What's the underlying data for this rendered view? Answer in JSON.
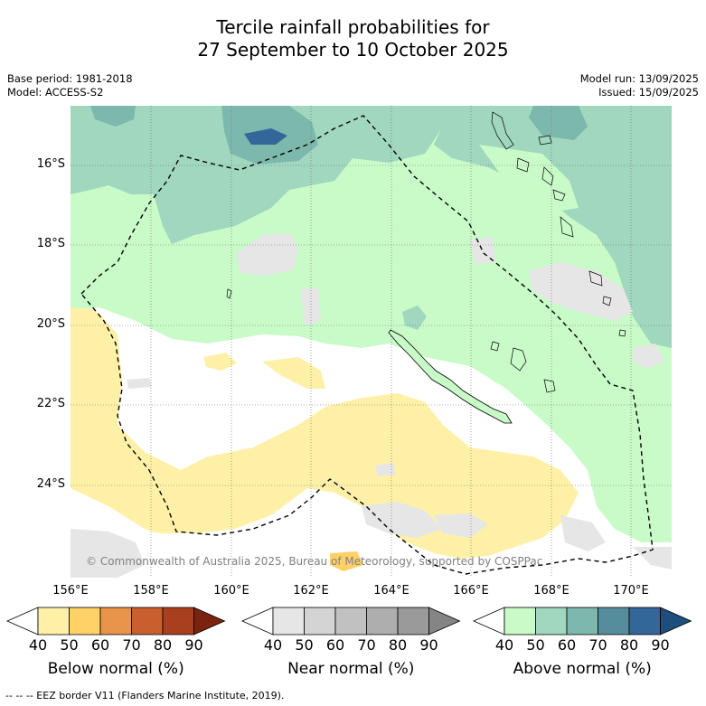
{
  "title_line1": "Tercile rainfall probabilities for",
  "title_line2": "27 September to 10 October 2025",
  "base_period": "Base period: 1981-2018",
  "model": "Model: ACCESS-S2",
  "model_run": "Model run: 13/09/2025",
  "issued": "Issued: 15/09/2025",
  "copyright": "© Commonwealth of Australia 2025, Bureau of Meteorology, supported by COSPPac",
  "lat_labels": [
    "16°S",
    "18°S",
    "20°S",
    "22°S",
    "24°S"
  ],
  "lon_labels": [
    "156°E",
    "158°E",
    "160°E",
    "162°E",
    "164°E",
    "166°E",
    "168°E",
    "170°E"
  ],
  "colorbars": [
    {
      "label": "Below normal (%)",
      "ticks": [
        "40",
        "50",
        "60",
        "70",
        "80",
        "90"
      ],
      "colors": [
        "#ffffff",
        "#fff0a8",
        "#ffd166",
        "#e8944a",
        "#c95f2f",
        "#a8401f",
        "#7a2410"
      ]
    },
    {
      "label": "Near normal (%)",
      "ticks": [
        "40",
        "50",
        "60",
        "70",
        "80",
        "90"
      ],
      "colors": [
        "#ffffff",
        "#e6e6e6",
        "#d4d4d4",
        "#c1c1c1",
        "#aeaeae",
        "#9a9a9a",
        "#858585"
      ]
    },
    {
      "label": "Above normal (%)",
      "ticks": [
        "40",
        "50",
        "60",
        "70",
        "80",
        "90"
      ],
      "colors": [
        "#ffffff",
        "#c8fbc8",
        "#a0d7be",
        "#7db8ad",
        "#558d9d",
        "#336699",
        "#1c4f7e"
      ]
    }
  ],
  "footnote": "--  --  -- EEZ border V11 (Flanders Marine Institute, 2019)."
}
